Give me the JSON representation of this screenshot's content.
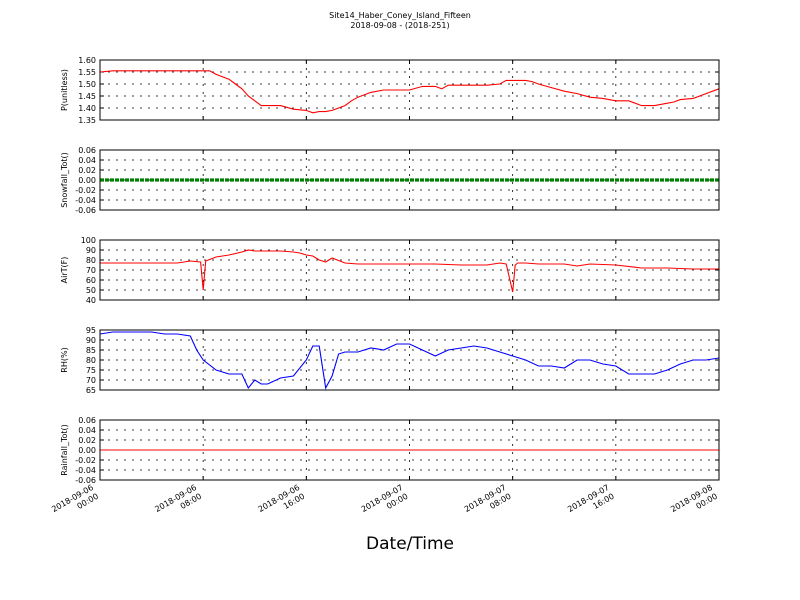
{
  "header": {
    "title": "Site14_Haber_Coney_Island_Fifteen",
    "subtitle": "2018-09-08 - (2018-251)"
  },
  "xlabel": "Date/Time",
  "x_ticks": [
    [
      "2018-09-06",
      "00:00"
    ],
    [
      "2018-09-06",
      "08:00"
    ],
    [
      "2018-09-06",
      "16:00"
    ],
    [
      "2018-09-07",
      "00:00"
    ],
    [
      "2018-09-07",
      "08:00"
    ],
    [
      "2018-09-07",
      "16:00"
    ],
    [
      "2018-09-08",
      "00:00"
    ]
  ],
  "colors": {
    "red": "#ff0000",
    "green": "#008000",
    "blue": "#0000ff"
  },
  "chart_data": [
    {
      "type": "line",
      "ylabel": "P(unitless)",
      "ylim": [
        1.35,
        1.6
      ],
      "yticks": [
        "1.60",
        "1.55",
        "1.50",
        "1.45",
        "1.40",
        "1.35"
      ],
      "color": "red",
      "grid": true,
      "x_hours": [
        0,
        1,
        2,
        3,
        4,
        5,
        6,
        7,
        8,
        8.5,
        9,
        10,
        10.5,
        11,
        11.5,
        12,
        12.5,
        13,
        14,
        15,
        16,
        16.5,
        17,
        17.5,
        18,
        18.5,
        19,
        19.5,
        20,
        21,
        22,
        23,
        24,
        25,
        26,
        26.5,
        27,
        28,
        29,
        30,
        31,
        31.5,
        32,
        33,
        33.5,
        34,
        35,
        36,
        37,
        38,
        39,
        40,
        41,
        42,
        43,
        44,
        44.5,
        45,
        46,
        47,
        48
      ],
      "y": [
        1.55,
        1.555,
        1.555,
        1.555,
        1.555,
        1.555,
        1.555,
        1.555,
        1.555,
        1.555,
        1.54,
        1.52,
        1.5,
        1.48,
        1.45,
        1.43,
        1.41,
        1.41,
        1.41,
        1.395,
        1.39,
        1.38,
        1.385,
        1.385,
        1.39,
        1.4,
        1.41,
        1.43,
        1.445,
        1.465,
        1.475,
        1.475,
        1.475,
        1.49,
        1.49,
        1.48,
        1.495,
        1.495,
        1.495,
        1.495,
        1.5,
        1.515,
        1.515,
        1.515,
        1.51,
        1.5,
        1.485,
        1.47,
        1.46,
        1.445,
        1.44,
        1.43,
        1.43,
        1.41,
        1.41,
        1.42,
        1.425,
        1.435,
        1.44,
        1.46,
        1.48
      ]
    },
    {
      "type": "line",
      "ylabel": "Snowfall_Tot()",
      "ylim": [
        -0.06,
        0.06
      ],
      "yticks": [
        "0.06",
        "0.04",
        "0.02",
        "0.00",
        "-0.02",
        "-0.04",
        "-0.06"
      ],
      "color": "green",
      "grid": true,
      "x_hours": [
        0,
        48
      ],
      "y": [
        0.0,
        0.0
      ]
    },
    {
      "type": "line",
      "ylabel": "AirT(F)",
      "ylim": [
        40,
        100
      ],
      "yticks": [
        "100",
        "90",
        "80",
        "70",
        "60",
        "50",
        "40"
      ],
      "color": "red",
      "grid": true,
      "x_hours": [
        0,
        2,
        4,
        6,
        7,
        7.8,
        8,
        8.2,
        9,
        10,
        11,
        11.5,
        12,
        13,
        14,
        15,
        15.5,
        16,
        16.5,
        17,
        17.5,
        18,
        19,
        20,
        22,
        24,
        26,
        28,
        30,
        31,
        31.5,
        32,
        32.2,
        32.4,
        33,
        34,
        36,
        37,
        38,
        40,
        42,
        44,
        46,
        48
      ],
      "y": [
        77,
        77,
        77,
        77,
        79,
        78,
        50,
        79,
        83,
        85,
        88,
        90,
        89,
        89,
        89,
        88,
        87,
        85,
        84,
        80,
        78,
        82,
        77,
        76,
        76,
        76,
        76,
        75,
        75,
        77,
        76,
        48,
        75,
        77,
        77,
        76,
        76,
        74,
        76,
        75,
        72,
        72,
        71,
        71
      ]
    },
    {
      "type": "line",
      "ylabel": "RH(%)",
      "ylim": [
        65,
        95
      ],
      "yticks": [
        "95",
        "90",
        "85",
        "80",
        "75",
        "70",
        "65"
      ],
      "color": "blue",
      "grid": true,
      "x_hours": [
        0,
        1,
        2,
        3,
        4,
        5,
        6,
        7,
        7.5,
        8,
        9,
        10,
        11,
        11.5,
        12,
        12.5,
        13,
        14,
        15,
        16,
        16.5,
        17,
        17.5,
        18,
        18.5,
        19,
        20,
        21,
        22,
        23,
        24,
        25,
        26,
        27,
        28,
        29,
        30,
        31,
        32,
        33,
        34,
        35,
        36,
        37,
        38,
        39,
        40,
        41,
        42,
        43,
        44,
        45,
        46,
        47,
        48
      ],
      "y": [
        93,
        94,
        94,
        94,
        94,
        93,
        93,
        92,
        85,
        80,
        75,
        73,
        73,
        66,
        70,
        68,
        68,
        71,
        72,
        80,
        87,
        87,
        66,
        72,
        83,
        84,
        84,
        86,
        85,
        88,
        88,
        85,
        82,
        85,
        86,
        87,
        86,
        84,
        82,
        80,
        77,
        77,
        76,
        80,
        80,
        78,
        77,
        73,
        73,
        73,
        75,
        78,
        80,
        80,
        81
      ]
    },
    {
      "type": "line",
      "ylabel": "Rainfall_Tot()",
      "ylim": [
        -0.06,
        0.06
      ],
      "yticks": [
        "0.06",
        "0.04",
        "0.02",
        "0.00",
        "-0.02",
        "-0.04",
        "-0.06"
      ],
      "color": "red",
      "grid": true,
      "x_hours": [
        0,
        48
      ],
      "y": [
        0.0,
        0.0
      ]
    }
  ]
}
